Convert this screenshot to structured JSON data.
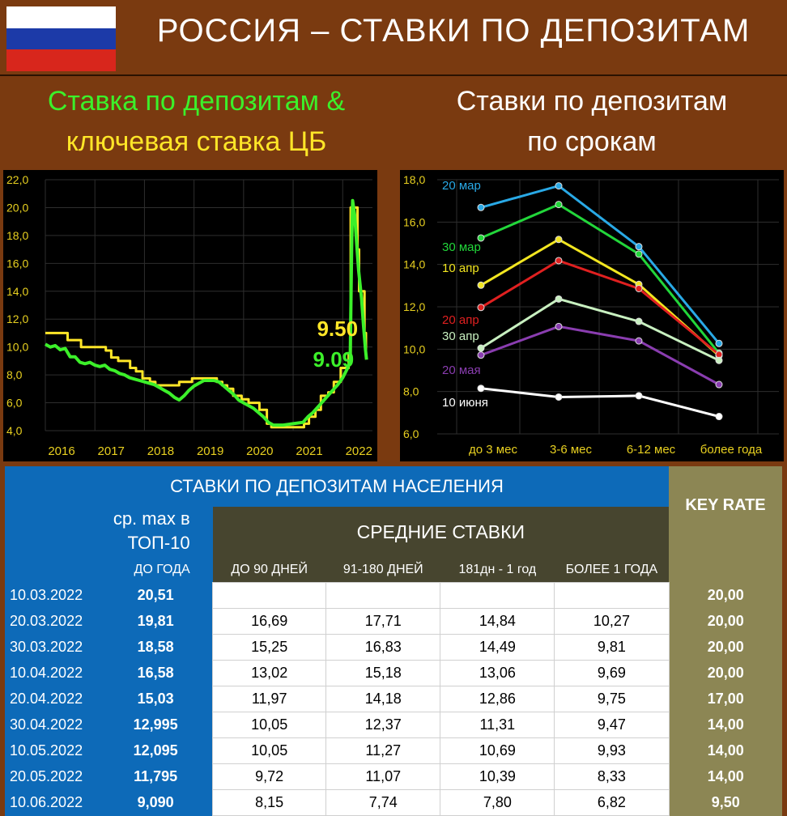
{
  "header": {
    "title": "РОССИЯ – СТАВКИ ПО ДЕПОЗИТАМ",
    "flag_colors": [
      "#ffffff",
      "#1c3aa8",
      "#d8261c"
    ]
  },
  "subtitles": {
    "left_line1": "Ставка по депозитам &",
    "left_line2": "ключевая ставка ЦБ",
    "right_line1": "Ставки по депозитам",
    "right_line2": "по срокам"
  },
  "chart_data": [
    {
      "type": "line",
      "xlim": [
        2016,
        2022.6
      ],
      "ylim": [
        4,
        22
      ],
      "x_ticks": [
        "2016",
        "2017",
        "2018",
        "2019",
        "2020",
        "2021",
        "2022"
      ],
      "y_ticks": [
        "4,0",
        "6,0",
        "8,0",
        "10,0",
        "12,0",
        "14,0",
        "16,0",
        "18,0",
        "20,0",
        "22,0"
      ],
      "grid": true,
      "annotations": [
        "9.50",
        "9.09"
      ],
      "series": [
        {
          "color": "#ffe628",
          "points": [
            [
              2016.0,
              11.0
            ],
            [
              2016.45,
              11.0
            ],
            [
              2016.45,
              10.5
            ],
            [
              2016.72,
              10.5
            ],
            [
              2016.72,
              10.0
            ],
            [
              2017.22,
              10.0
            ],
            [
              2017.22,
              9.75
            ],
            [
              2017.33,
              9.75
            ],
            [
              2017.33,
              9.25
            ],
            [
              2017.47,
              9.25
            ],
            [
              2017.47,
              9.0
            ],
            [
              2017.71,
              9.0
            ],
            [
              2017.71,
              8.5
            ],
            [
              2017.83,
              8.5
            ],
            [
              2017.83,
              8.25
            ],
            [
              2017.96,
              8.25
            ],
            [
              2017.96,
              7.75
            ],
            [
              2018.11,
              7.75
            ],
            [
              2018.11,
              7.5
            ],
            [
              2018.22,
              7.5
            ],
            [
              2018.22,
              7.25
            ],
            [
              2018.7,
              7.25
            ],
            [
              2018.7,
              7.5
            ],
            [
              2018.96,
              7.5
            ],
            [
              2018.96,
              7.75
            ],
            [
              2019.46,
              7.75
            ],
            [
              2019.46,
              7.5
            ],
            [
              2019.57,
              7.5
            ],
            [
              2019.57,
              7.25
            ],
            [
              2019.67,
              7.25
            ],
            [
              2019.67,
              7.0
            ],
            [
              2019.79,
              7.0
            ],
            [
              2019.79,
              6.5
            ],
            [
              2019.96,
              6.5
            ],
            [
              2019.96,
              6.25
            ],
            [
              2020.1,
              6.25
            ],
            [
              2020.1,
              6.0
            ],
            [
              2020.32,
              6.0
            ],
            [
              2020.32,
              5.5
            ],
            [
              2020.47,
              5.5
            ],
            [
              2020.47,
              4.5
            ],
            [
              2020.56,
              4.5
            ],
            [
              2020.56,
              4.25
            ],
            [
              2021.22,
              4.25
            ],
            [
              2021.22,
              4.5
            ],
            [
              2021.32,
              4.5
            ],
            [
              2021.32,
              5.0
            ],
            [
              2021.45,
              5.0
            ],
            [
              2021.45,
              5.5
            ],
            [
              2021.56,
              5.5
            ],
            [
              2021.56,
              6.5
            ],
            [
              2021.71,
              6.5
            ],
            [
              2021.71,
              6.75
            ],
            [
              2021.82,
              6.75
            ],
            [
              2021.82,
              7.5
            ],
            [
              2021.96,
              7.5
            ],
            [
              2021.96,
              8.5
            ],
            [
              2022.12,
              8.5
            ],
            [
              2022.12,
              9.5
            ],
            [
              2022.16,
              9.5
            ],
            [
              2022.16,
              20.0
            ],
            [
              2022.3,
              20.0
            ],
            [
              2022.3,
              17.0
            ],
            [
              2022.33,
              17.0
            ],
            [
              2022.33,
              14.0
            ],
            [
              2022.44,
              14.0
            ],
            [
              2022.44,
              11.0
            ],
            [
              2022.47,
              11.0
            ],
            [
              2022.47,
              9.5
            ]
          ]
        },
        {
          "color": "#3cf02a",
          "points": [
            [
              2016.0,
              10.2
            ],
            [
              2016.1,
              10.0
            ],
            [
              2016.2,
              10.1
            ],
            [
              2016.3,
              9.8
            ],
            [
              2016.4,
              9.9
            ],
            [
              2016.5,
              9.3
            ],
            [
              2016.6,
              9.3
            ],
            [
              2016.7,
              8.9
            ],
            [
              2016.8,
              8.8
            ],
            [
              2016.9,
              8.9
            ],
            [
              2017.0,
              8.7
            ],
            [
              2017.1,
              8.6
            ],
            [
              2017.2,
              8.7
            ],
            [
              2017.3,
              8.4
            ],
            [
              2017.4,
              8.3
            ],
            [
              2017.5,
              8.1
            ],
            [
              2017.6,
              8.0
            ],
            [
              2017.7,
              7.8
            ],
            [
              2017.8,
              7.7
            ],
            [
              2017.9,
              7.6
            ],
            [
              2018.0,
              7.5
            ],
            [
              2018.1,
              7.4
            ],
            [
              2018.2,
              7.3
            ],
            [
              2018.3,
              7.1
            ],
            [
              2018.4,
              6.9
            ],
            [
              2018.5,
              6.7
            ],
            [
              2018.6,
              6.4
            ],
            [
              2018.7,
              6.2
            ],
            [
              2018.8,
              6.5
            ],
            [
              2018.9,
              6.9
            ],
            [
              2019.0,
              7.2
            ],
            [
              2019.1,
              7.4
            ],
            [
              2019.2,
              7.6
            ],
            [
              2019.3,
              7.6
            ],
            [
              2019.4,
              7.6
            ],
            [
              2019.5,
              7.5
            ],
            [
              2019.6,
              7.2
            ],
            [
              2019.7,
              6.9
            ],
            [
              2019.8,
              6.6
            ],
            [
              2019.9,
              6.2
            ],
            [
              2020.0,
              6.0
            ],
            [
              2020.1,
              5.8
            ],
            [
              2020.2,
              5.6
            ],
            [
              2020.3,
              5.3
            ],
            [
              2020.4,
              5.0
            ],
            [
              2020.5,
              4.6
            ],
            [
              2020.6,
              4.4
            ],
            [
              2020.8,
              4.4
            ],
            [
              2021.0,
              4.5
            ],
            [
              2021.2,
              4.6
            ],
            [
              2021.3,
              5.0
            ],
            [
              2021.4,
              5.3
            ],
            [
              2021.5,
              5.7
            ],
            [
              2021.6,
              6.1
            ],
            [
              2021.7,
              6.5
            ],
            [
              2021.8,
              6.9
            ],
            [
              2021.9,
              7.3
            ],
            [
              2022.0,
              7.8
            ],
            [
              2022.1,
              8.5
            ],
            [
              2022.15,
              9.0
            ],
            [
              2022.18,
              17.0
            ],
            [
              2022.2,
              20.5
            ],
            [
              2022.24,
              19.5
            ],
            [
              2022.28,
              17.5
            ],
            [
              2022.32,
              15.5
            ],
            [
              2022.38,
              13.5
            ],
            [
              2022.42,
              11.5
            ],
            [
              2022.46,
              9.8
            ],
            [
              2022.48,
              9.09
            ]
          ]
        }
      ]
    },
    {
      "type": "line",
      "categories": [
        "до 3 мес",
        "3-6 мес",
        "6-12 мес",
        "более года"
      ],
      "ylim": [
        6,
        18
      ],
      "y_ticks": [
        "6,0",
        "8,0",
        "10,0",
        "12,0",
        "14,0",
        "16,0",
        "18,0"
      ],
      "grid": true,
      "series": [
        {
          "name": "20 мар",
          "color": "#29a9e6",
          "values": [
            16.69,
            17.71,
            14.84,
            10.27
          ]
        },
        {
          "name": "30 мар",
          "color": "#22d63a",
          "values": [
            15.25,
            16.83,
            14.49,
            9.81
          ]
        },
        {
          "name": "10 апр",
          "color": "#f2e620",
          "values": [
            13.02,
            15.18,
            13.06,
            9.69
          ]
        },
        {
          "name": "20 апр",
          "color": "#e02020",
          "values": [
            11.97,
            14.18,
            12.86,
            9.75
          ]
        },
        {
          "name": "30 апр",
          "color": "#c8f0c0",
          "values": [
            10.05,
            12.37,
            11.31,
            9.47
          ]
        },
        {
          "name": "20 мая",
          "color": "#8a3db0",
          "values": [
            9.72,
            11.07,
            10.39,
            8.33
          ]
        },
        {
          "name": "10 июня",
          "color": "#ffffff",
          "values": [
            8.15,
            7.74,
            7.8,
            6.82
          ]
        }
      ]
    }
  ],
  "table": {
    "title": "СТАВКИ ПО ДЕПОЗИТАМ НАСЕЛЕНИЯ",
    "max_header1": "ср. max в",
    "max_header2": "ТОП-10",
    "max_header3": "ДО ГОДА",
    "avg_header": "СРЕДНИЕ СТАВКИ",
    "key_header": "KEY RATE",
    "columns": [
      "ДО 90 ДНЕЙ",
      "91-180 ДНЕЙ",
      "181дн - 1 год",
      "БОЛЕЕ 1 ГОДА"
    ],
    "rows": [
      {
        "date": "10.03.2022",
        "max": "20,51",
        "c1": "",
        "c2": "",
        "c3": "",
        "c4": "",
        "key": "20,00"
      },
      {
        "date": "20.03.2022",
        "max": "19,81",
        "c1": "16,69",
        "c2": "17,71",
        "c3": "14,84",
        "c4": "10,27",
        "key": "20,00"
      },
      {
        "date": "30.03.2022",
        "max": "18,58",
        "c1": "15,25",
        "c2": "16,83",
        "c3": "14,49",
        "c4": "9,81",
        "key": "20,00"
      },
      {
        "date": "10.04.2022",
        "max": "16,58",
        "c1": "13,02",
        "c2": "15,18",
        "c3": "13,06",
        "c4": "9,69",
        "key": "20,00"
      },
      {
        "date": "20.04.2022",
        "max": "15,03",
        "c1": "11,97",
        "c2": "14,18",
        "c3": "12,86",
        "c4": "9,75",
        "key": "17,00"
      },
      {
        "date": "30.04.2022",
        "max": "12,995",
        "c1": "10,05",
        "c2": "12,37",
        "c3": "11,31",
        "c4": "9,47",
        "key": "14,00"
      },
      {
        "date": "10.05.2022",
        "max": "12,095",
        "c1": "10,05",
        "c2": "11,27",
        "c3": "10,69",
        "c4": "9,93",
        "key": "14,00"
      },
      {
        "date": "20.05.2022",
        "max": "11,795",
        "c1": "9,72",
        "c2": "11,07",
        "c3": "10,39",
        "c4": "8,33",
        "key": "14,00"
      },
      {
        "date": "10.06.2022",
        "max": "9,090",
        "c1": "8,15",
        "c2": "7,74",
        "c3": "7,80",
        "c4": "6,82",
        "key": "9,50"
      }
    ]
  }
}
